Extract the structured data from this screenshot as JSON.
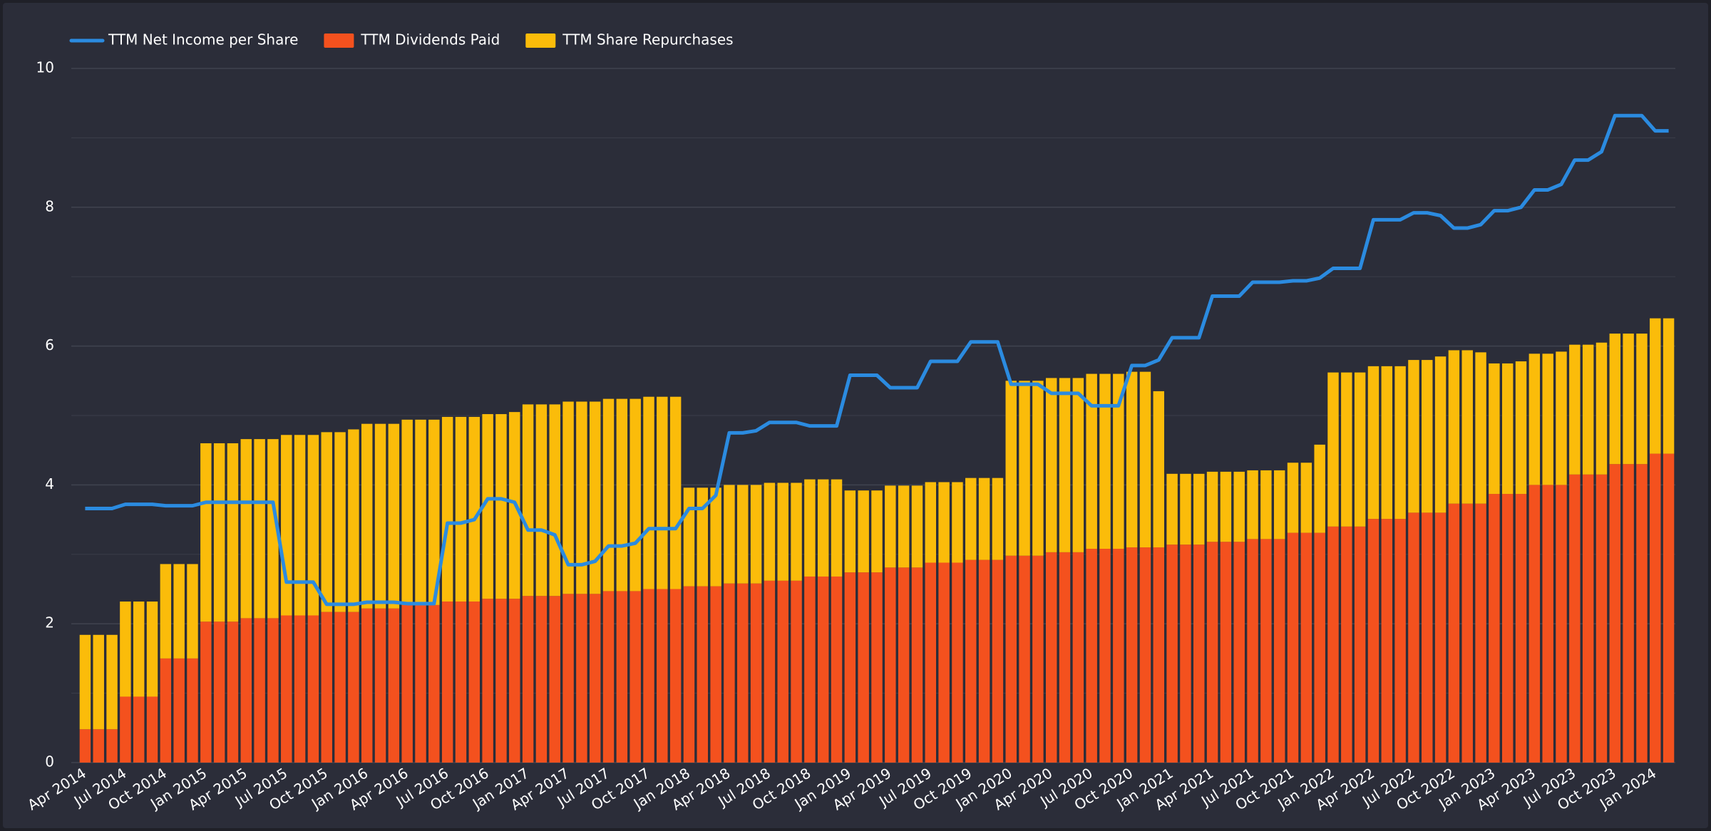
{
  "chart_data": {
    "type": "bar",
    "categories": [
      "Apr 2014",
      null,
      null,
      "Jul 2014",
      null,
      null,
      "Oct 2014",
      null,
      null,
      "Jan 2015",
      null,
      null,
      "Apr 2015",
      null,
      null,
      "Jul 2015",
      null,
      null,
      "Oct 2015",
      null,
      null,
      "Jan 2016",
      null,
      null,
      "Apr 2016",
      null,
      null,
      "Jul 2016",
      null,
      null,
      "Oct 2016",
      null,
      null,
      "Jan 2017",
      null,
      null,
      "Apr 2017",
      null,
      null,
      "Jul 2017",
      null,
      null,
      "Oct 2017",
      null,
      null,
      "Jan 2018",
      null,
      null,
      "Apr 2018",
      null,
      null,
      "Jul 2018",
      null,
      null,
      "Oct 2018",
      null,
      null,
      "Jan 2019",
      null,
      null,
      "Apr 2019",
      null,
      null,
      "Jul 2019",
      null,
      null,
      "Oct 2019",
      null,
      null,
      "Jan 2020",
      null,
      null,
      "Apr 2020",
      null,
      null,
      "Jul 2020",
      null,
      null,
      "Oct 2020",
      null,
      null,
      "Jan 2021",
      null,
      null,
      "Apr 2021",
      null,
      null,
      "Jul 2021",
      null,
      null,
      "Oct 2021",
      null,
      null,
      "Jan 2022",
      null,
      null,
      "Apr 2022",
      null,
      null,
      "Jul 2022",
      null,
      null,
      "Oct 2022",
      null,
      null,
      "Jan 2023",
      null,
      null,
      "Apr 2023",
      null,
      null,
      "Jul 2023",
      null,
      null,
      "Oct 2023",
      null,
      null,
      "Jan 2024",
      null
    ],
    "series": [
      {
        "name": "TTM Net Income per Share",
        "type": "line",
        "color": "#2b8be0",
        "values": [
          3.66,
          3.66,
          3.66,
          3.72,
          3.72,
          3.72,
          3.7,
          3.7,
          3.7,
          3.75,
          3.75,
          3.75,
          3.75,
          3.75,
          3.75,
          2.6,
          2.6,
          2.6,
          2.28,
          2.28,
          2.28,
          2.31,
          2.31,
          2.31,
          2.29,
          2.29,
          2.29,
          3.45,
          3.45,
          3.5,
          3.8,
          3.8,
          3.75,
          3.35,
          3.35,
          3.28,
          2.85,
          2.85,
          2.9,
          3.12,
          3.12,
          3.16,
          3.37,
          3.37,
          3.37,
          3.66,
          3.66,
          3.85,
          4.75,
          4.75,
          4.78,
          4.9,
          4.9,
          4.9,
          4.85,
          4.85,
          4.85,
          5.58,
          5.58,
          5.58,
          5.4,
          5.4,
          5.4,
          5.78,
          5.78,
          5.78,
          6.06,
          6.06,
          6.06,
          5.45,
          5.45,
          5.45,
          5.32,
          5.32,
          5.32,
          5.14,
          5.14,
          5.14,
          5.72,
          5.72,
          5.8,
          6.12,
          6.12,
          6.12,
          6.72,
          6.72,
          6.72,
          6.92,
          6.92,
          6.92,
          6.94,
          6.94,
          6.98,
          7.12,
          7.12,
          7.12,
          7.82,
          7.82,
          7.82,
          7.92,
          7.92,
          7.88,
          7.7,
          7.7,
          7.75,
          7.95,
          7.95,
          8.0,
          8.25,
          8.25,
          8.33,
          8.68,
          8.68,
          8.8,
          9.32,
          9.32,
          9.32,
          9.1,
          9.1
        ]
      },
      {
        "name": "TTM Dividends Paid",
        "type": "bar",
        "color": "#f4511e",
        "values": [
          0.48,
          0.48,
          0.48,
          0.95,
          0.95,
          0.95,
          1.5,
          1.5,
          1.5,
          2.03,
          2.03,
          2.03,
          2.08,
          2.08,
          2.08,
          2.12,
          2.12,
          2.12,
          2.17,
          2.17,
          2.17,
          2.22,
          2.22,
          2.22,
          2.27,
          2.27,
          2.27,
          2.32,
          2.32,
          2.32,
          2.36,
          2.36,
          2.36,
          2.4,
          2.4,
          2.4,
          2.43,
          2.43,
          2.43,
          2.47,
          2.47,
          2.47,
          2.5,
          2.5,
          2.5,
          2.54,
          2.54,
          2.54,
          2.58,
          2.58,
          2.58,
          2.62,
          2.62,
          2.62,
          2.68,
          2.68,
          2.68,
          2.74,
          2.74,
          2.74,
          2.81,
          2.81,
          2.81,
          2.88,
          2.88,
          2.88,
          2.92,
          2.92,
          2.92,
          2.98,
          2.98,
          2.98,
          3.03,
          3.03,
          3.03,
          3.08,
          3.08,
          3.08,
          3.1,
          3.1,
          3.1,
          3.14,
          3.14,
          3.14,
          3.18,
          3.18,
          3.18,
          3.22,
          3.22,
          3.22,
          3.31,
          3.31,
          3.31,
          3.4,
          3.4,
          3.4,
          3.51,
          3.51,
          3.51,
          3.6,
          3.6,
          3.6,
          3.73,
          3.73,
          3.73,
          3.87,
          3.87,
          3.87,
          4.0,
          4.0,
          4.0,
          4.15,
          4.15,
          4.15,
          4.3,
          4.3,
          4.3,
          4.45,
          4.45
        ]
      },
      {
        "name": "TTM Share Repurchases",
        "type": "bar",
        "color": "#fbbc0a",
        "values": [
          1.36,
          1.36,
          1.36,
          1.37,
          1.37,
          1.37,
          1.36,
          1.36,
          1.36,
          2.57,
          2.57,
          2.57,
          2.58,
          2.58,
          2.58,
          2.6,
          2.6,
          2.6,
          2.59,
          2.59,
          2.63,
          2.66,
          2.66,
          2.66,
          2.67,
          2.67,
          2.67,
          2.66,
          2.66,
          2.66,
          2.66,
          2.66,
          2.69,
          2.76,
          2.76,
          2.76,
          2.77,
          2.77,
          2.77,
          2.77,
          2.77,
          2.77,
          2.77,
          2.77,
          2.77,
          1.42,
          1.42,
          1.42,
          1.42,
          1.42,
          1.42,
          1.41,
          1.41,
          1.41,
          1.4,
          1.4,
          1.4,
          1.18,
          1.18,
          1.18,
          1.18,
          1.18,
          1.18,
          1.16,
          1.16,
          1.16,
          1.18,
          1.18,
          1.18,
          2.52,
          2.52,
          2.52,
          2.51,
          2.51,
          2.51,
          2.52,
          2.52,
          2.52,
          2.53,
          2.53,
          2.25,
          1.02,
          1.02,
          1.02,
          1.01,
          1.01,
          1.01,
          0.99,
          0.99,
          0.99,
          1.01,
          1.01,
          1.27,
          2.22,
          2.22,
          2.22,
          2.2,
          2.2,
          2.2,
          2.2,
          2.2,
          2.25,
          2.21,
          2.21,
          2.18,
          1.88,
          1.88,
          1.91,
          1.89,
          1.89,
          1.92,
          1.87,
          1.87,
          1.9,
          1.88,
          1.88,
          1.88,
          1.95,
          1.95
        ]
      }
    ],
    "ylim": [
      0,
      10
    ],
    "yticks": [
      0,
      2,
      4,
      6,
      8,
      10
    ],
    "grid": true,
    "legend": "top-left"
  }
}
